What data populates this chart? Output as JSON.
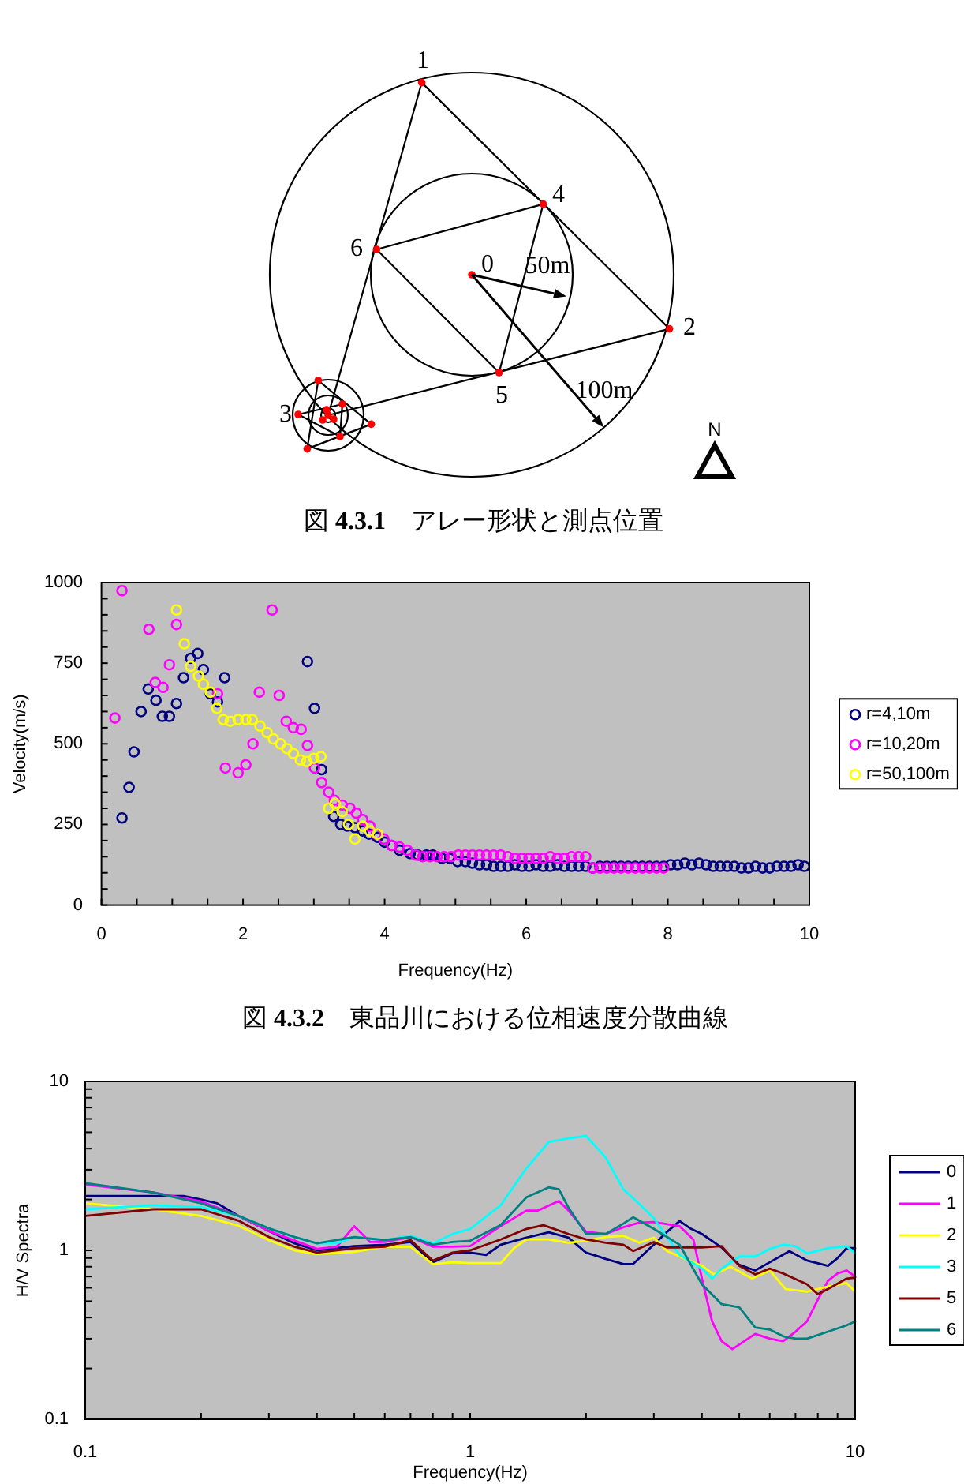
{
  "chart_data": [
    {
      "type": "other",
      "title": "図 **4.3.1**　アレー形状と測点位置",
      "annotations": [
        "1",
        "2",
        "3",
        "4",
        "5",
        "6",
        "0",
        "50m",
        "100m",
        "N"
      ]
    },
    {
      "type": "scatter",
      "title": "図 **4.3.2**　東品川における位相速度分散曲線",
      "xlabel": "Frequency(Hz)",
      "ylabel": "Velocity(m/s)",
      "xlim": [
        0,
        10
      ],
      "ylim": [
        0,
        1000
      ],
      "xticks": [
        0,
        {
          "value": 0.5,
          "label": null
        },
        {
          "value": 1,
          "label": null
        },
        {
          "value": 1.5,
          "label": null
        },
        2,
        {
          "value": 2.5,
          "label": null
        },
        {
          "value": 3,
          "label": null
        },
        {
          "value": 3.5,
          "label": null
        },
        4,
        {
          "value": 4.5,
          "label": null
        },
        {
          "value": 5,
          "label": null
        },
        {
          "value": 5.5,
          "label": null
        },
        6,
        {
          "value": 6.5,
          "label": null
        },
        {
          "value": 7,
          "label": null
        },
        {
          "value": 7.5,
          "label": null
        },
        8,
        {
          "value": 8.5,
          "label": null
        },
        {
          "value": 9,
          "label": null
        },
        {
          "value": 9.5,
          "label": null
        },
        10
      ],
      "yticks": [
        0,
        {
          "value": 50,
          "label": null
        },
        {
          "value": 100,
          "label": null
        },
        {
          "value": 150,
          "label": null
        },
        {
          "value": 200,
          "label": null
        },
        250,
        {
          "value": 300,
          "label": null
        },
        {
          "value": 350,
          "label": null
        },
        {
          "value": 400,
          "label": null
        },
        {
          "value": 450,
          "label": null
        },
        500,
        {
          "value": 550,
          "label": null
        },
        {
          "value": 600,
          "label": null
        },
        {
          "value": 650,
          "label": null
        },
        {
          "value": 700,
          "label": null
        },
        750,
        {
          "value": 800,
          "label": null
        },
        {
          "value": 850,
          "label": null
        },
        {
          "value": 900,
          "label": null
        },
        {
          "value": 950,
          "label": null
        },
        1000
      ],
      "marker": "circle",
      "legend": "right",
      "series": [
        {
          "name": "r=4,10m",
          "color": "#000080",
          "x": [
            0.29,
            0.39,
            0.46,
            0.56,
            0.66,
            0.77,
            0.86,
            0.96,
            1.06,
            1.16,
            1.26,
            1.36,
            1.44,
            1.54,
            1.64,
            1.74,
            2.91,
            3.01,
            3.11,
            3.28,
            3.38,
            3.47,
            3.58,
            3.69,
            3.78,
            3.9,
            4.0,
            4.1,
            4.21,
            4.36,
            4.47,
            4.59,
            4.68,
            4.81,
            4.92,
            5.03,
            5.14,
            5.24,
            5.34,
            5.44,
            5.54,
            5.64,
            5.74,
            5.84,
            5.94,
            6.04,
            6.14,
            6.24,
            6.34,
            6.44,
            6.54,
            6.64,
            6.74,
            6.84,
            6.94,
            7.04,
            7.14,
            7.24,
            7.34,
            7.44,
            7.54,
            7.64,
            7.74,
            7.84,
            7.94,
            8.04,
            8.14,
            8.24,
            8.34,
            8.44,
            8.54,
            8.64,
            8.74,
            8.84,
            8.94,
            9.04,
            9.14,
            9.24,
            9.34,
            9.44,
            9.54,
            9.64,
            9.74,
            9.84,
            9.93
          ],
          "values": [
            270,
            365,
            475,
            600,
            670,
            635,
            585,
            585,
            625,
            705,
            765,
            780,
            730,
            655,
            630,
            705,
            755,
            610,
            420,
            275,
            250,
            245,
            240,
            230,
            220,
            210,
            195,
            185,
            170,
            160,
            155,
            155,
            155,
            145,
            145,
            135,
            135,
            130,
            125,
            125,
            120,
            120,
            120,
            125,
            120,
            120,
            125,
            120,
            120,
            125,
            120,
            120,
            120,
            120,
            115,
            120,
            120,
            120,
            120,
            120,
            120,
            120,
            120,
            120,
            120,
            125,
            125,
            130,
            125,
            130,
            125,
            120,
            120,
            120,
            120,
            115,
            115,
            120,
            115,
            115,
            120,
            120,
            120,
            125,
            120
          ]
        },
        {
          "name": "r=10,20m",
          "color": "#ff00ff",
          "x": [
            0.19,
            0.29,
            0.67,
            0.76,
            0.87,
            0.96,
            1.06,
            1.64,
            1.75,
            1.93,
            2.04,
            2.14,
            2.23,
            2.41,
            2.51,
            2.61,
            2.71,
            2.82,
            2.91,
            3.01,
            3.11,
            3.21,
            3.29,
            3.4,
            3.51,
            3.6,
            3.69,
            3.79,
            3.88,
            3.99,
            4.1,
            4.21,
            4.32,
            4.44,
            4.54,
            4.64,
            4.74,
            4.84,
            4.94,
            5.04,
            5.14,
            5.24,
            5.34,
            5.44,
            5.54,
            5.64,
            5.74,
            5.84,
            5.94,
            6.04,
            6.14,
            6.24,
            6.34,
            6.44,
            6.54,
            6.64,
            6.74,
            6.84,
            6.94,
            7.04,
            7.14,
            7.24,
            7.34,
            7.44,
            7.54,
            7.64,
            7.74,
            7.84,
            7.94
          ],
          "values": [
            580,
            975,
            855,
            690,
            675,
            745,
            870,
            655,
            425,
            410,
            435,
            500,
            660,
            915,
            650,
            570,
            550,
            545,
            495,
            425,
            380,
            350,
            325,
            310,
            300,
            285,
            265,
            245,
            220,
            205,
            185,
            180,
            170,
            155,
            150,
            150,
            150,
            150,
            150,
            155,
            155,
            155,
            155,
            155,
            155,
            155,
            150,
            145,
            145,
            145,
            145,
            145,
            150,
            145,
            145,
            150,
            150,
            150,
            115,
            115,
            115,
            115,
            115,
            115,
            115,
            115,
            115,
            115,
            115
          ]
        },
        {
          "name": "r=50,100m",
          "color": "#ffff00",
          "x": [
            1.06,
            1.17,
            1.26,
            1.37,
            1.44,
            1.54,
            1.63,
            1.72,
            1.82,
            1.93,
            2.04,
            2.13,
            2.24,
            2.34,
            2.43,
            2.53,
            2.62,
            2.71,
            2.81,
            2.9,
            3.0,
            3.1,
            3.21,
            3.3,
            3.4,
            3.49,
            3.58,
            3.69,
            3.79,
            3.9
          ],
          "values": [
            915,
            810,
            740,
            710,
            685,
            660,
            610,
            575,
            570,
            575,
            575,
            575,
            555,
            535,
            515,
            500,
            485,
            470,
            450,
            445,
            455,
            460,
            300,
            315,
            290,
            250,
            205,
            245,
            230,
            220
          ]
        }
      ]
    },
    {
      "type": "line",
      "xlabel": "Frequency(Hz)",
      "ylabel": "H/V Spectra",
      "log": "xy",
      "xlim": [
        0.1,
        10
      ],
      "ylim": [
        0.1,
        10
      ],
      "xticks": [
        0.1,
        {
          "value": 0.2,
          "label": null
        },
        {
          "value": 0.3,
          "label": null
        },
        {
          "value": 0.4,
          "label": null
        },
        {
          "value": 0.5,
          "label": null
        },
        {
          "value": 0.6,
          "label": null
        },
        {
          "value": 0.7,
          "label": null
        },
        {
          "value": 0.8,
          "label": null
        },
        {
          "value": 0.9,
          "label": null
        },
        1,
        {
          "value": 2,
          "label": null
        },
        {
          "value": 3,
          "label": null
        },
        {
          "value": 4,
          "label": null
        },
        {
          "value": 5,
          "label": null
        },
        {
          "value": 6,
          "label": null
        },
        {
          "value": 7,
          "label": null
        },
        {
          "value": 8,
          "label": null
        },
        {
          "value": 9,
          "label": null
        },
        10
      ],
      "yticks": [
        0.1,
        {
          "value": 0.2,
          "label": null
        },
        {
          "value": 0.3,
          "label": null
        },
        {
          "value": 0.4,
          "label": null
        },
        {
          "value": 0.5,
          "label": null
        },
        {
          "value": 0.6,
          "label": null
        },
        {
          "value": 0.7,
          "label": null
        },
        {
          "value": 0.8,
          "label": null
        },
        {
          "value": 0.9,
          "label": null
        },
        1,
        {
          "value": 2,
          "label": null
        },
        {
          "value": 3,
          "label": null
        },
        {
          "value": 4,
          "label": null
        },
        {
          "value": 5,
          "label": null
        },
        {
          "value": 6,
          "label": null
        },
        {
          "value": 7,
          "label": null
        },
        {
          "value": 8,
          "label": null
        },
        {
          "value": 9,
          "label": null
        },
        10
      ],
      "legend": "right",
      "line_style": "solid",
      "series": [
        {
          "name": "0",
          "color": "#000080",
          "x": [
            0.1,
            0.15,
            0.18,
            0.2,
            0.22,
            0.25,
            0.3,
            0.35,
            0.4,
            0.5,
            0.6,
            0.7,
            0.8,
            0.9,
            1.0,
            1.1,
            1.2,
            1.4,
            1.6,
            1.8,
            2.0,
            2.25,
            2.5,
            2.65,
            3.0,
            3.25,
            3.5,
            3.75,
            4.0,
            4.5,
            5,
            5.5,
            6,
            6.75,
            7.5,
            8.5,
            9,
            9.5,
            10
          ],
          "values": [
            2.1,
            2.1,
            2.1,
            2.0,
            1.9,
            1.6,
            1.3,
            1.1,
            1.0,
            1.06,
            1.08,
            1.12,
            0.85,
            0.96,
            0.97,
            0.94,
            1.08,
            1.19,
            1.28,
            1.19,
            0.97,
            0.89,
            0.83,
            0.83,
            1.08,
            1.29,
            1.49,
            1.34,
            1.25,
            1.04,
            0.82,
            0.76,
            0.85,
            0.99,
            0.87,
            0.81,
            0.9,
            1.03,
            1.03
          ]
        },
        {
          "name": "1",
          "color": "#ff00ff",
          "x": [
            0.1,
            0.15,
            0.2,
            0.25,
            0.3,
            0.4,
            0.45,
            0.5,
            0.55,
            0.6,
            0.7,
            0.8,
            0.9,
            1.0,
            1.2,
            1.4,
            1.5,
            1.7,
            1.8,
            2.0,
            2.25,
            2.5,
            2.75,
            3.0,
            3.5,
            3.8,
            4.0,
            4.25,
            4.5,
            4.8,
            5.5,
            6,
            6.5,
            7,
            7.5,
            8,
            8.5,
            9,
            9.5,
            10
          ],
          "values": [
            2.45,
            2.2,
            1.95,
            1.6,
            1.3,
            1.02,
            1.05,
            1.39,
            1.12,
            1.12,
            1.2,
            1.05,
            1.05,
            1.06,
            1.39,
            1.72,
            1.72,
            1.96,
            1.72,
            1.29,
            1.25,
            1.37,
            1.46,
            1.47,
            1.39,
            1.16,
            0.68,
            0.38,
            0.29,
            0.26,
            0.32,
            0.3,
            0.29,
            0.33,
            0.38,
            0.51,
            0.66,
            0.73,
            0.76,
            0.7
          ]
        },
        {
          "name": "2",
          "color": "#ffff00",
          "x": [
            0.1,
            0.15,
            0.2,
            0.25,
            0.3,
            0.35,
            0.4,
            0.5,
            0.6,
            0.7,
            0.8,
            0.9,
            1.0,
            1.2,
            1.3,
            1.4,
            1.6,
            1.8,
            2.0,
            2.25,
            2.5,
            2.75,
            3.0,
            3.25,
            3.5,
            4.0,
            4.3,
            4.75,
            5.4,
            6,
            6.6,
            7.5,
            8.5,
            9.5,
            10
          ],
          "values": [
            1.9,
            1.75,
            1.6,
            1.4,
            1.15,
            1.0,
            0.95,
            0.98,
            1.05,
            1.05,
            0.83,
            0.85,
            0.84,
            0.84,
            1.03,
            1.16,
            1.16,
            1.11,
            1.14,
            1.2,
            1.22,
            1.11,
            1.19,
            0.99,
            0.92,
            0.81,
            0.72,
            0.8,
            0.68,
            0.76,
            0.59,
            0.57,
            0.61,
            0.64,
            0.57
          ]
        },
        {
          "name": "3",
          "color": "#00ffff",
          "x": [
            0.1,
            0.15,
            0.2,
            0.25,
            0.3,
            0.35,
            0.4,
            0.45,
            0.5,
            0.6,
            0.7,
            0.8,
            0.9,
            1.0,
            1.2,
            1.4,
            1.6,
            1.8,
            2.0,
            2.25,
            2.5,
            2.75,
            3.0,
            3.5,
            4.0,
            4.25,
            4.5,
            5,
            5.5,
            6,
            6.5,
            7,
            7.5,
            8.5,
            9.5,
            10
          ],
          "values": [
            1.75,
            1.85,
            1.8,
            1.6,
            1.35,
            1.2,
            1.1,
            1.1,
            1.2,
            1.15,
            1.22,
            1.1,
            1.25,
            1.34,
            1.85,
            3.06,
            4.38,
            4.6,
            4.76,
            3.54,
            2.3,
            1.88,
            1.55,
            0.94,
            0.78,
            0.68,
            0.78,
            0.92,
            0.92,
            1.02,
            1.08,
            1.06,
            0.96,
            1.03,
            1.06,
            0.96
          ]
        },
        {
          "name": "5",
          "color": "#800000",
          "x": [
            0.1,
            0.15,
            0.2,
            0.25,
            0.3,
            0.35,
            0.4,
            0.5,
            0.6,
            0.7,
            0.8,
            0.9,
            1.0,
            1.2,
            1.4,
            1.55,
            1.8,
            2.0,
            2.25,
            2.5,
            2.65,
            3.0,
            3.25,
            4.0,
            4.5,
            5,
            5.5,
            6,
            6.5,
            7.5,
            8,
            8.5,
            9.5,
            10
          ],
          "values": [
            1.6,
            1.75,
            1.75,
            1.5,
            1.2,
            1.05,
            0.97,
            1.03,
            1.05,
            1.15,
            0.87,
            0.97,
            1.0,
            1.16,
            1.34,
            1.41,
            1.25,
            1.16,
            1.11,
            1.08,
            0.99,
            1.12,
            1.04,
            1.04,
            1.06,
            0.81,
            0.72,
            0.78,
            0.73,
            0.63,
            0.55,
            0.59,
            0.68,
            0.69
          ]
        },
        {
          "name": "6",
          "color": "#008080",
          "x": [
            0.1,
            0.15,
            0.2,
            0.25,
            0.3,
            0.35,
            0.4,
            0.5,
            0.6,
            0.7,
            0.8,
            0.9,
            1.0,
            1.2,
            1.4,
            1.6,
            1.7,
            1.8,
            2.0,
            2.25,
            2.5,
            2.65,
            3.0,
            3.5,
            4.0,
            4.5,
            5,
            5.5,
            6,
            6.5,
            7,
            7.5,
            8.5,
            9.5,
            10
          ],
          "values": [
            2.5,
            2.2,
            1.9,
            1.6,
            1.35,
            1.2,
            1.1,
            1.2,
            1.15,
            1.2,
            1.08,
            1.12,
            1.14,
            1.41,
            2.06,
            2.36,
            2.3,
            1.79,
            1.25,
            1.25,
            1.44,
            1.57,
            1.34,
            1.08,
            0.63,
            0.48,
            0.46,
            0.35,
            0.34,
            0.31,
            0.3,
            0.3,
            0.33,
            0.36,
            0.38
          ]
        }
      ]
    }
  ]
}
